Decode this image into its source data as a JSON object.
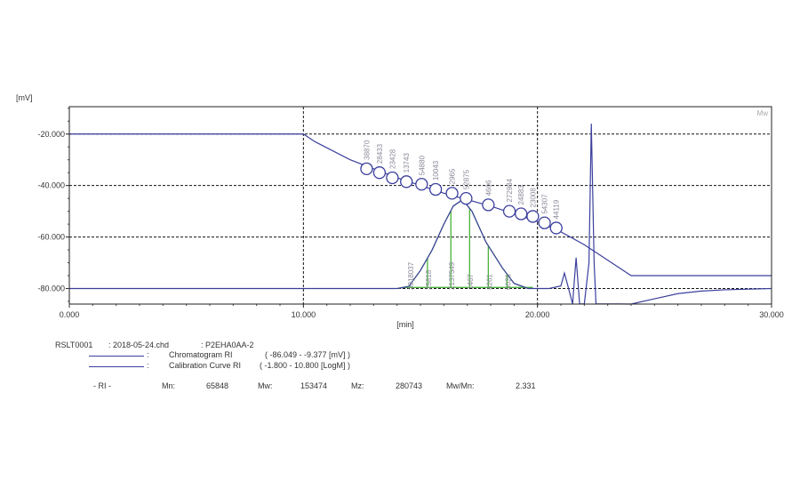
{
  "chart_data": {
    "type": "line",
    "y_unit": "[mV]",
    "x_unit": "[min]",
    "corner_label": "Mw",
    "xlim": [
      0,
      30
    ],
    "ylim": [
      -86.049,
      -9.377
    ],
    "x_ticks": [
      "0.000",
      "10.000",
      "20.000",
      "30.000"
    ],
    "y_ticks": [
      "-20.000",
      "-40.000",
      "-60.000",
      "-80.000"
    ],
    "grid": "dashed at 10, 20 min and -20, -40, -60, -80 mV",
    "series": [
      {
        "name": "Chromatogram RI",
        "points": [
          [
            0,
            -80
          ],
          [
            14,
            -80
          ],
          [
            14.5,
            -79.2
          ],
          [
            15,
            -73
          ],
          [
            15.5,
            -65
          ],
          [
            16,
            -55
          ],
          [
            16.4,
            -48
          ],
          [
            16.8,
            -45.5
          ],
          [
            17.2,
            -50
          ],
          [
            17.8,
            -62
          ],
          [
            18.5,
            -72
          ],
          [
            19,
            -78
          ],
          [
            19.6,
            -80
          ],
          [
            20.5,
            -80
          ],
          [
            21,
            -79
          ],
          [
            21.15,
            -74
          ],
          [
            21.3,
            -79
          ],
          [
            21.5,
            -86
          ],
          [
            21.65,
            -68
          ],
          [
            21.8,
            -86
          ],
          [
            22,
            -86
          ],
          [
            22.2,
            -70
          ],
          [
            22.3,
            -16
          ],
          [
            22.42,
            -70
          ],
          [
            22.5,
            -86
          ],
          [
            23,
            -86
          ],
          [
            23.3,
            -86
          ],
          [
            23.5,
            -86
          ],
          [
            24,
            -87
          ],
          [
            25,
            -84
          ],
          [
            26,
            -82
          ],
          [
            27,
            -81
          ],
          [
            28,
            -80.5
          ],
          [
            30,
            -80
          ]
        ]
      },
      {
        "name": "Calibration Curve RI",
        "points": [
          [
            0,
            -20
          ],
          [
            10,
            -20
          ],
          [
            10.5,
            -23
          ],
          [
            12,
            -30
          ],
          [
            14,
            -37
          ],
          [
            16,
            -43
          ],
          [
            18,
            -48
          ],
          [
            19,
            -51
          ],
          [
            20,
            -54
          ],
          [
            21,
            -58
          ],
          [
            22,
            -63
          ],
          [
            23,
            -69
          ],
          [
            24,
            -75
          ],
          [
            30,
            -75
          ]
        ]
      }
    ],
    "slice_lines_x": [
      14.55,
      15.3,
      16.3,
      17.1,
      17.9,
      18.7,
      19.6
    ],
    "markers": {
      "x": [
        12.7,
        13.25,
        13.8,
        14.4,
        15.05,
        15.65,
        16.35,
        16.95,
        17.9,
        18.8,
        19.3,
        19.8,
        20.3,
        20.8
      ],
      "y": [
        -33.5,
        -35,
        -37,
        -38.5,
        -39.5,
        -41.5,
        -43,
        -45,
        -47.5,
        -50,
        -51,
        -52,
        -54.5,
        -56.5
      ],
      "labels": [
        "38870",
        "28433",
        "23428",
        "13743",
        "54880",
        "10043",
        "2965",
        "52875",
        "4606",
        "272984",
        "24883",
        "23008",
        "54307",
        "44119"
      ]
    },
    "peak_labels": [
      "3018037",
      "25818",
      "2137549",
      "1467",
      "8261",
      "6020"
    ]
  },
  "legend": {
    "rslt": "RSLT0001",
    "file": ": 2018-05-24.chd",
    "sample": ": P2EHA0AA-2",
    "chrom_sep": ":",
    "chrom_name": "Chromatogram RI",
    "chrom_range": "( -86.049 - -9.377 [mV] )",
    "calib_sep": ":",
    "calib_name": "Calibration Curve RI",
    "calib_range": "( -1.800 - 10.800 [LogM] )",
    "ri_label": "- RI -",
    "mn_label": "Mn:",
    "mn_value": "65848",
    "mw_label": "Mw:",
    "mw_value": "153474",
    "mz_label": "Mz:",
    "mz_value": "280743",
    "mwmn_label": "Mw/Mn:",
    "mwmn_value": "2.331"
  },
  "colors": {
    "line": "#3b3f9c",
    "marker": "#3b3f9c",
    "slice": "#49b23a",
    "label": "#8a8a9a",
    "grid": "#111111"
  }
}
